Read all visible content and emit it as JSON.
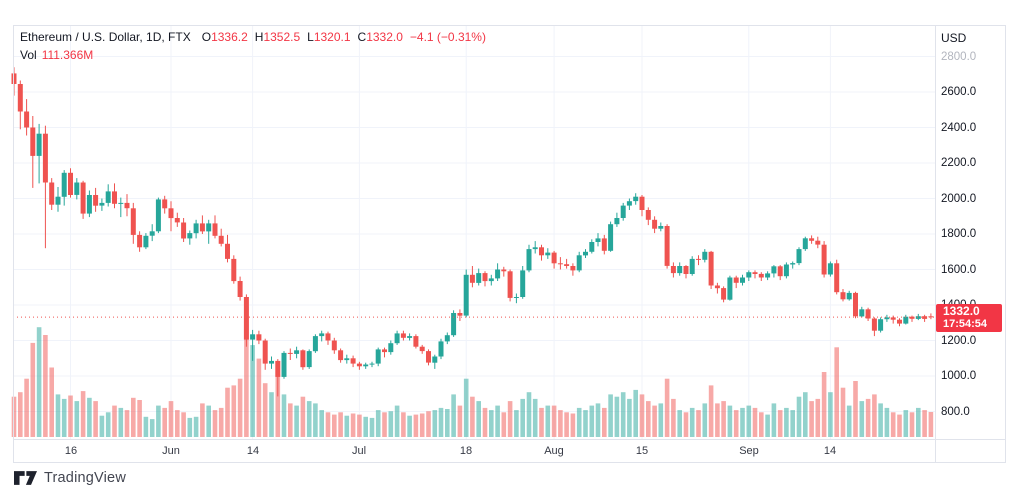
{
  "header": {
    "symbol": "Ethereum / U.S. Dollar, 1D, FTX",
    "ohlc": {
      "o_label": "O",
      "o": "1336.2",
      "h_label": "H",
      "h": "1352.5",
      "l_label": "L",
      "l": "1320.1",
      "c_label": "C",
      "c": "1332.0",
      "change": "−4.1 (−0.31%)"
    },
    "volume_label": "Vol",
    "volume_value": "111.366M"
  },
  "price_axis": {
    "currency": "USD",
    "ticks": [
      {
        "label": "2800.0",
        "value": 2800,
        "muted": true
      },
      {
        "label": "2600.0",
        "value": 2600
      },
      {
        "label": "2400.0",
        "value": 2400
      },
      {
        "label": "2200.0",
        "value": 2200
      },
      {
        "label": "2000.0",
        "value": 2000
      },
      {
        "label": "1800.0",
        "value": 1800
      },
      {
        "label": "1600.0",
        "value": 1600
      },
      {
        "label": "1400.0",
        "value": 1400
      },
      {
        "label": "1200.0",
        "value": 1200
      },
      {
        "label": "1000.0",
        "value": 1000
      },
      {
        "label": "800.0",
        "value": 800
      }
    ],
    "last_price_label": "1332.0",
    "countdown": "17:54:54"
  },
  "time_axis": {
    "ticks": [
      {
        "label": "16",
        "index": 9
      },
      {
        "label": "Jun",
        "index": 25
      },
      {
        "label": "14",
        "index": 38
      },
      {
        "label": "Jul",
        "index": 55
      },
      {
        "label": "18",
        "index": 72
      },
      {
        "label": "Aug",
        "index": 86
      },
      {
        "label": "15",
        "index": 100
      },
      {
        "label": "Sep",
        "index": 117
      },
      {
        "label": "14",
        "index": 130
      }
    ]
  },
  "watermark": {
    "brand": "TradingView"
  },
  "colors": {
    "background": "#ffffff",
    "up": "#26a69a",
    "down": "#ef5350",
    "accent_red": "#f23645",
    "grid": "#f0f3fa",
    "border": "#e0e3eb",
    "text": "#131722",
    "muted": "#b2b5be",
    "volume_opacity": 0.5
  },
  "chart_data": {
    "type": "candlestick+volume",
    "title": "Ethereum / U.S. Dollar, 1D, FTX",
    "price_axis_range": [
      700,
      2870
    ],
    "price_grid_step": 200,
    "volume_unit": "M",
    "last_close": 1332.0,
    "last_open": 1336.2,
    "last_high": 1352.5,
    "last_low": 1320.1,
    "last_change": -4.1,
    "last_change_pct": -0.31,
    "last_volume_m": 111.366,
    "candles_format": [
      "open",
      "high",
      "low",
      "close",
      "volume_m"
    ],
    "candles": [
      [
        2705,
        2740,
        2580,
        2645,
        180
      ],
      [
        2645,
        2665,
        2390,
        2490,
        200
      ],
      [
        2490,
        2560,
        2355,
        2400,
        260
      ],
      [
        2400,
        2465,
        2060,
        2240,
        420
      ],
      [
        2240,
        2420,
        2085,
        2365,
        490
      ],
      [
        2365,
        2410,
        1720,
        2090,
        455
      ],
      [
        2090,
        2115,
        1935,
        1965,
        310
      ],
      [
        1965,
        2065,
        1925,
        2010,
        190
      ],
      [
        2010,
        2160,
        1960,
        2145,
        170
      ],
      [
        2145,
        2170,
        2005,
        2020,
        185
      ],
      [
        2020,
        2115,
        1995,
        2090,
        160
      ],
      [
        2090,
        2100,
        1885,
        1915,
        205
      ],
      [
        1915,
        2045,
        1895,
        2020,
        175
      ],
      [
        2020,
        2060,
        1925,
        1960,
        160
      ],
      [
        1960,
        2000,
        1930,
        1975,
        95
      ],
      [
        1975,
        2080,
        1955,
        2040,
        110
      ],
      [
        2040,
        2085,
        1945,
        1970,
        140
      ],
      [
        1970,
        2005,
        1895,
        1975,
        130
      ],
      [
        1975,
        2025,
        1900,
        1945,
        120
      ],
      [
        1945,
        1975,
        1745,
        1795,
        175
      ],
      [
        1795,
        1815,
        1700,
        1725,
        165
      ],
      [
        1725,
        1805,
        1715,
        1790,
        90
      ],
      [
        1790,
        1855,
        1760,
        1815,
        80
      ],
      [
        1815,
        2005,
        1805,
        1995,
        140
      ],
      [
        1995,
        2015,
        1915,
        1945,
        130
      ],
      [
        1945,
        1985,
        1815,
        1890,
        160
      ],
      [
        1890,
        1920,
        1840,
        1865,
        120
      ],
      [
        1865,
        1890,
        1755,
        1775,
        110
      ],
      [
        1775,
        1820,
        1740,
        1805,
        85
      ],
      [
        1805,
        1880,
        1775,
        1860,
        90
      ],
      [
        1860,
        1905,
        1800,
        1815,
        150
      ],
      [
        1815,
        1880,
        1745,
        1860,
        140
      ],
      [
        1860,
        1905,
        1775,
        1790,
        120
      ],
      [
        1790,
        1830,
        1730,
        1745,
        130
      ],
      [
        1745,
        1795,
        1640,
        1660,
        220
      ],
      [
        1660,
        1680,
        1520,
        1535,
        230
      ],
      [
        1535,
        1560,
        1425,
        1445,
        260
      ],
      [
        1445,
        1460,
        1165,
        1205,
        580
      ],
      [
        1205,
        1260,
        1085,
        1235,
        410
      ],
      [
        1235,
        1255,
        1180,
        1200,
        350
      ],
      [
        1200,
        1210,
        1035,
        1070,
        240
      ],
      [
        1070,
        1110,
        1040,
        1085,
        200
      ],
      [
        1085,
        1095,
        885,
        995,
        280
      ],
      [
        995,
        1140,
        985,
        1130,
        190
      ],
      [
        1130,
        1155,
        1090,
        1125,
        150
      ],
      [
        1125,
        1165,
        1100,
        1145,
        140
      ],
      [
        1145,
        1150,
        1035,
        1050,
        180
      ],
      [
        1050,
        1150,
        1040,
        1140,
        160
      ],
      [
        1140,
        1235,
        1130,
        1225,
        150
      ],
      [
        1225,
        1255,
        1195,
        1240,
        120
      ],
      [
        1240,
        1250,
        1175,
        1200,
        110
      ],
      [
        1200,
        1215,
        1125,
        1145,
        100
      ],
      [
        1145,
        1155,
        1075,
        1090,
        110
      ],
      [
        1090,
        1120,
        1070,
        1100,
        95
      ],
      [
        1100,
        1115,
        1050,
        1070,
        105
      ],
      [
        1070,
        1080,
        1035,
        1055,
        100
      ],
      [
        1055,
        1075,
        1040,
        1065,
        90
      ],
      [
        1065,
        1080,
        1050,
        1070,
        85
      ],
      [
        1070,
        1160,
        1055,
        1150,
        120
      ],
      [
        1150,
        1160,
        1105,
        1135,
        110
      ],
      [
        1135,
        1200,
        1120,
        1185,
        115
      ],
      [
        1185,
        1255,
        1175,
        1240,
        140
      ],
      [
        1240,
        1255,
        1200,
        1215,
        110
      ],
      [
        1215,
        1240,
        1200,
        1225,
        95
      ],
      [
        1225,
        1235,
        1155,
        1165,
        100
      ],
      [
        1165,
        1175,
        1125,
        1140,
        105
      ],
      [
        1140,
        1150,
        1060,
        1075,
        115
      ],
      [
        1075,
        1120,
        1040,
        1110,
        120
      ],
      [
        1110,
        1210,
        1095,
        1195,
        130
      ],
      [
        1195,
        1245,
        1180,
        1230,
        125
      ],
      [
        1230,
        1370,
        1220,
        1355,
        190
      ],
      [
        1355,
        1375,
        1310,
        1340,
        140
      ],
      [
        1340,
        1600,
        1330,
        1570,
        260
      ],
      [
        1570,
        1620,
        1500,
        1525,
        180
      ],
      [
        1525,
        1605,
        1510,
        1580,
        160
      ],
      [
        1580,
        1590,
        1505,
        1535,
        130
      ],
      [
        1535,
        1570,
        1510,
        1550,
        120
      ],
      [
        1550,
        1635,
        1535,
        1600,
        140
      ],
      [
        1600,
        1615,
        1560,
        1590,
        110
      ],
      [
        1590,
        1600,
        1420,
        1440,
        160
      ],
      [
        1440,
        1465,
        1410,
        1445,
        120
      ],
      [
        1445,
        1620,
        1435,
        1595,
        170
      ],
      [
        1595,
        1740,
        1585,
        1715,
        200
      ],
      [
        1715,
        1760,
        1690,
        1725,
        170
      ],
      [
        1725,
        1740,
        1650,
        1680,
        130
      ],
      [
        1680,
        1720,
        1660,
        1695,
        140
      ],
      [
        1695,
        1705,
        1605,
        1635,
        140
      ],
      [
        1635,
        1670,
        1600,
        1630,
        120
      ],
      [
        1630,
        1660,
        1605,
        1620,
        110
      ],
      [
        1620,
        1635,
        1565,
        1595,
        105
      ],
      [
        1595,
        1700,
        1585,
        1680,
        130
      ],
      [
        1680,
        1715,
        1665,
        1700,
        120
      ],
      [
        1700,
        1770,
        1690,
        1755,
        140
      ],
      [
        1755,
        1805,
        1730,
        1775,
        150
      ],
      [
        1775,
        1795,
        1685,
        1705,
        130
      ],
      [
        1705,
        1870,
        1700,
        1855,
        190
      ],
      [
        1855,
        1920,
        1840,
        1890,
        180
      ],
      [
        1890,
        1975,
        1875,
        1960,
        200
      ],
      [
        1960,
        2000,
        1935,
        1985,
        170
      ],
      [
        1985,
        2030,
        1965,
        2010,
        210
      ],
      [
        2010,
        2020,
        1900,
        1935,
        190
      ],
      [
        1935,
        1950,
        1850,
        1880,
        160
      ],
      [
        1880,
        1900,
        1805,
        1830,
        140
      ],
      [
        1830,
        1865,
        1815,
        1845,
        150
      ],
      [
        1845,
        1855,
        1605,
        1620,
        260
      ],
      [
        1620,
        1640,
        1555,
        1580,
        170
      ],
      [
        1580,
        1640,
        1565,
        1620,
        120
      ],
      [
        1620,
        1625,
        1550,
        1575,
        110
      ],
      [
        1575,
        1675,
        1565,
        1660,
        130
      ],
      [
        1660,
        1680,
        1625,
        1655,
        120
      ],
      [
        1655,
        1715,
        1640,
        1700,
        150
      ],
      [
        1700,
        1705,
        1490,
        1510,
        230
      ],
      [
        1510,
        1525,
        1465,
        1495,
        150
      ],
      [
        1495,
        1505,
        1415,
        1430,
        160
      ],
      [
        1430,
        1565,
        1425,
        1555,
        140
      ],
      [
        1555,
        1565,
        1495,
        1525,
        120
      ],
      [
        1525,
        1570,
        1510,
        1555,
        130
      ],
      [
        1555,
        1595,
        1535,
        1585,
        140
      ],
      [
        1585,
        1595,
        1550,
        1575,
        130
      ],
      [
        1575,
        1585,
        1535,
        1555,
        110
      ],
      [
        1555,
        1590,
        1540,
        1578,
        100
      ],
      [
        1578,
        1625,
        1555,
        1618,
        150
      ],
      [
        1618,
        1625,
        1540,
        1562,
        120
      ],
      [
        1562,
        1640,
        1550,
        1628,
        130
      ],
      [
        1628,
        1645,
        1605,
        1636,
        120
      ],
      [
        1636,
        1725,
        1625,
        1715,
        180
      ],
      [
        1715,
        1785,
        1705,
        1776,
        200
      ],
      [
        1776,
        1792,
        1745,
        1762,
        160
      ],
      [
        1762,
        1785,
        1720,
        1740,
        170
      ],
      [
        1740,
        1760,
        1555,
        1572,
        290
      ],
      [
        1572,
        1645,
        1560,
        1635,
        200
      ],
      [
        1635,
        1655,
        1460,
        1472,
        400
      ],
      [
        1472,
        1490,
        1420,
        1432,
        220
      ],
      [
        1432,
        1480,
        1425,
        1468,
        140
      ],
      [
        1468,
        1475,
        1325,
        1336,
        250
      ],
      [
        1336,
        1390,
        1330,
        1376,
        160
      ],
      [
        1376,
        1385,
        1310,
        1324,
        170
      ],
      [
        1324,
        1330,
        1225,
        1255,
        190
      ],
      [
        1255,
        1330,
        1245,
        1320,
        150
      ],
      [
        1320,
        1345,
        1305,
        1330,
        130
      ],
      [
        1330,
        1340,
        1295,
        1317,
        110
      ],
      [
        1317,
        1325,
        1280,
        1295,
        100
      ],
      [
        1295,
        1345,
        1290,
        1334,
        120
      ],
      [
        1334,
        1340,
        1305,
        1322,
        110
      ],
      [
        1322,
        1350,
        1315,
        1337,
        130
      ],
      [
        1337,
        1345,
        1305,
        1322,
        120
      ],
      [
        1336.2,
        1352.5,
        1320.1,
        1332.0,
        111.366
      ]
    ]
  }
}
